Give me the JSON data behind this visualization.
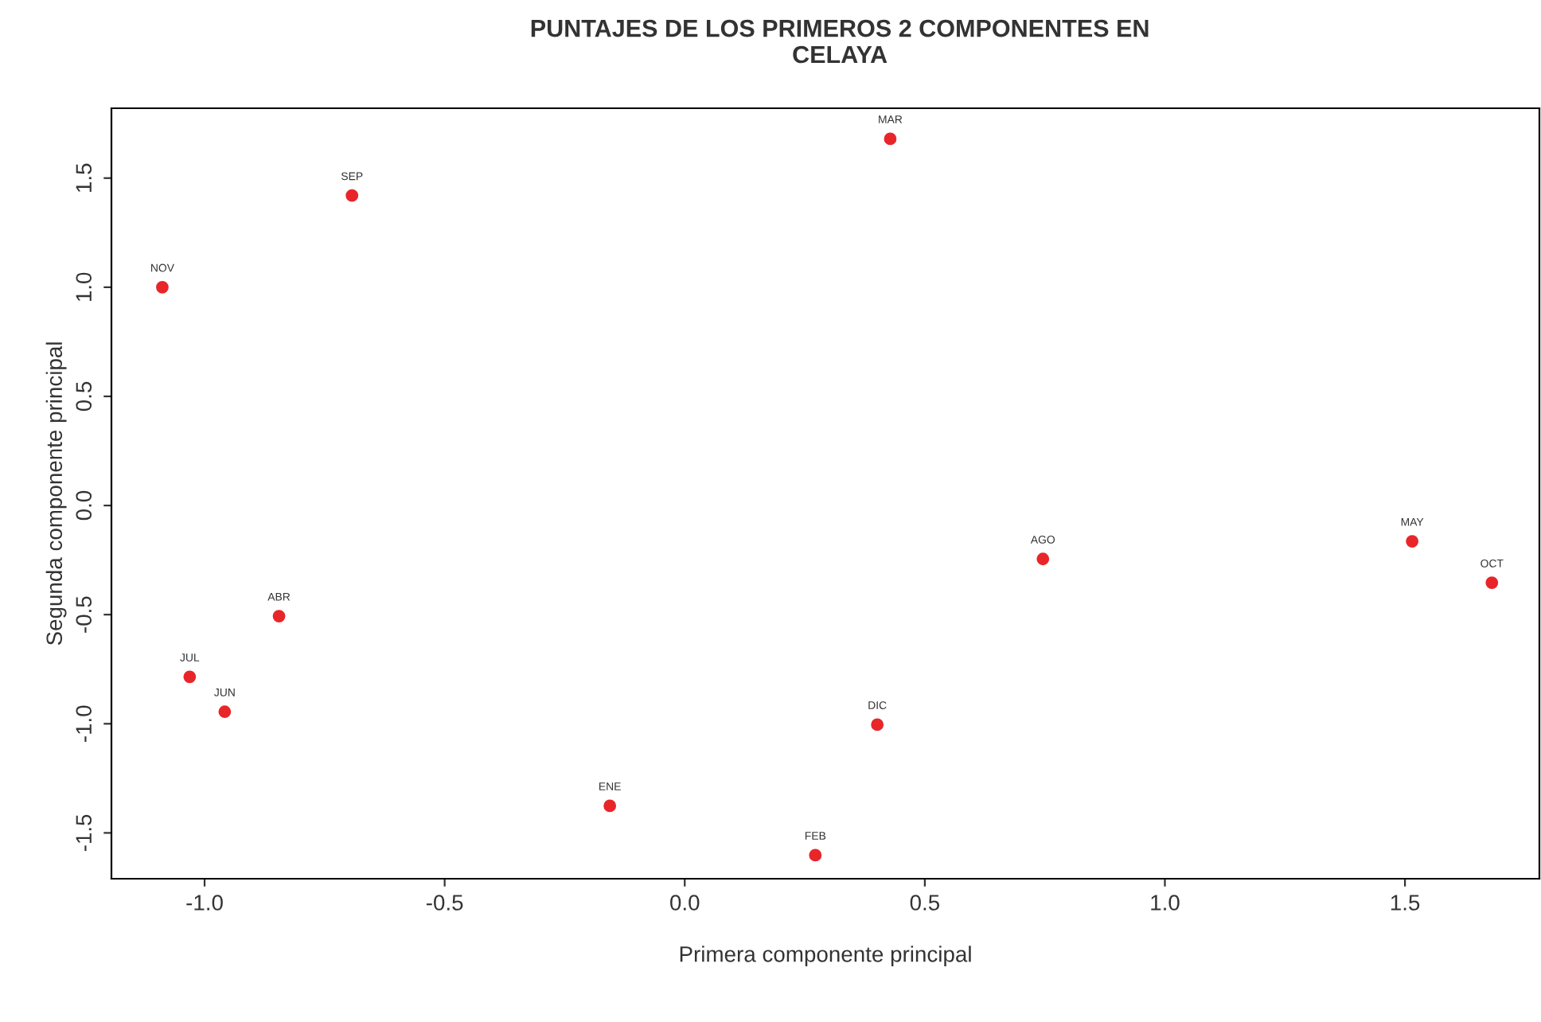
{
  "chart_data": {
    "type": "scatter",
    "title": "PUNTAJES DE LOS PRIMEROS 2 COMPONENTES EN\nCELAYA",
    "xlabel": "Primera componente principal",
    "ylabel": "Segunda componente principal",
    "x": [
      -0.156,
      0.272,
      0.428,
      -0.845,
      1.515,
      -0.958,
      -1.031,
      0.746,
      -0.693,
      1.681,
      -1.088,
      0.401
    ],
    "series": [
      {
        "color": "#e8262a",
        "values": [
          -1.376,
          -1.602,
          1.68,
          -0.507,
          -0.164,
          -0.945,
          -0.785,
          -0.245,
          1.42,
          -0.354,
          1.0,
          -1.004
        ]
      }
    ],
    "annotations": [
      {
        "text": "ENE",
        "x": -0.156,
        "y": -1.376
      },
      {
        "text": "FEB",
        "x": 0.272,
        "y": -1.602
      },
      {
        "text": "MAR",
        "x": 0.428,
        "y": 1.68
      },
      {
        "text": "ABR",
        "x": -0.845,
        "y": -0.507
      },
      {
        "text": "MAY",
        "x": 1.515,
        "y": -0.164
      },
      {
        "text": "JUN",
        "x": -0.958,
        "y": -0.945
      },
      {
        "text": "JUL",
        "x": -1.031,
        "y": -0.785
      },
      {
        "text": "AGO",
        "x": 0.746,
        "y": -0.245
      },
      {
        "text": "SEP",
        "x": -0.693,
        "y": 1.42
      },
      {
        "text": "OCT",
        "x": 1.681,
        "y": -0.354
      },
      {
        "text": "NOV",
        "x": -1.088,
        "y": 1.0
      },
      {
        "text": "DIC",
        "x": 0.401,
        "y": -1.004
      }
    ],
    "xlim": [
      -1.194,
      1.78
    ],
    "ylim": [
      -1.71,
      1.82
    ],
    "xticks": [
      {
        "value": -1,
        "label": "-1.0"
      },
      {
        "value": -0.5,
        "label": "-0.5"
      },
      {
        "value": 0,
        "label": "0.0"
      },
      {
        "value": 0.5,
        "label": "0.5"
      },
      {
        "value": 1,
        "label": "1.0"
      },
      {
        "value": 1.5,
        "label": "1.5"
      }
    ],
    "yticks": [
      {
        "value": -1.5,
        "label": "-1.5"
      },
      {
        "value": -1,
        "label": "-1.0"
      },
      {
        "value": -0.5,
        "label": "-0.5"
      },
      {
        "value": 0,
        "label": "0.0"
      },
      {
        "value": 0.5,
        "label": "0.5"
      },
      {
        "value": 1,
        "label": "1.0"
      },
      {
        "value": 1.5,
        "label": "1.5"
      }
    ],
    "grid": false,
    "marker": "circle"
  }
}
